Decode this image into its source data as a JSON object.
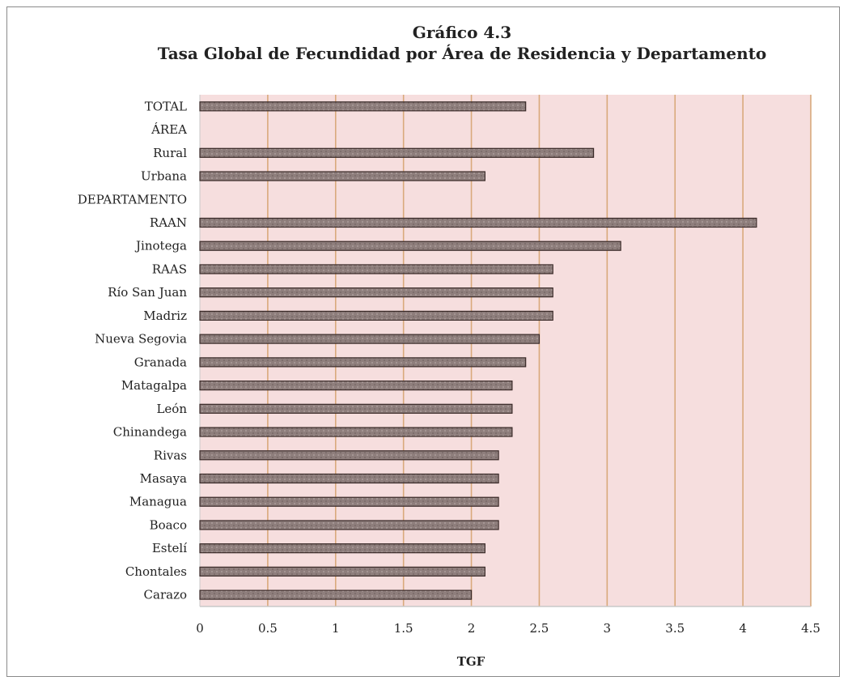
{
  "chart_data": {
    "type": "bar",
    "orientation": "horizontal",
    "title": "Gráfico 4.3",
    "subtitle": "Tasa Global de Fecundidad por Área de Residencia y Departamento",
    "xlabel": "TGF",
    "ylabel": "",
    "xlim": [
      0,
      4.5
    ],
    "xticks": [
      "0",
      "0.5",
      "1",
      "1.5",
      "2",
      "2.5",
      "3",
      "3.5",
      "4",
      "4.5"
    ],
    "xtick_values": [
      0,
      0.5,
      1,
      1.5,
      2,
      2.5,
      3,
      3.5,
      4,
      4.5
    ],
    "grid": true,
    "legend": "none",
    "categories": [
      "TOTAL",
      "ÁREA",
      "Rural",
      "Urbana",
      "DEPARTAMENTO",
      "RAAN",
      "Jinotega",
      "RAAS",
      "Río San Juan",
      "Madriz",
      "Nueva Segovia",
      "Granada",
      "Matagalpa",
      "León",
      "Chinandega",
      "Rivas",
      "Masaya",
      "Managua",
      "Boaco",
      "Estelí",
      "Chontales",
      "Carazo"
    ],
    "values": [
      2.4,
      null,
      2.9,
      2.1,
      null,
      4.1,
      3.1,
      2.6,
      2.6,
      2.6,
      2.5,
      2.4,
      2.3,
      2.3,
      2.3,
      2.2,
      2.2,
      2.2,
      2.2,
      2.1,
      2.1,
      2.0
    ],
    "colors": {
      "plot_background": "#f6dede",
      "bar_fill": "#8e7e7c",
      "bar_stroke": "#3a2a28",
      "gridline": "#d9a97c",
      "axis": "#c8c8c8"
    }
  }
}
